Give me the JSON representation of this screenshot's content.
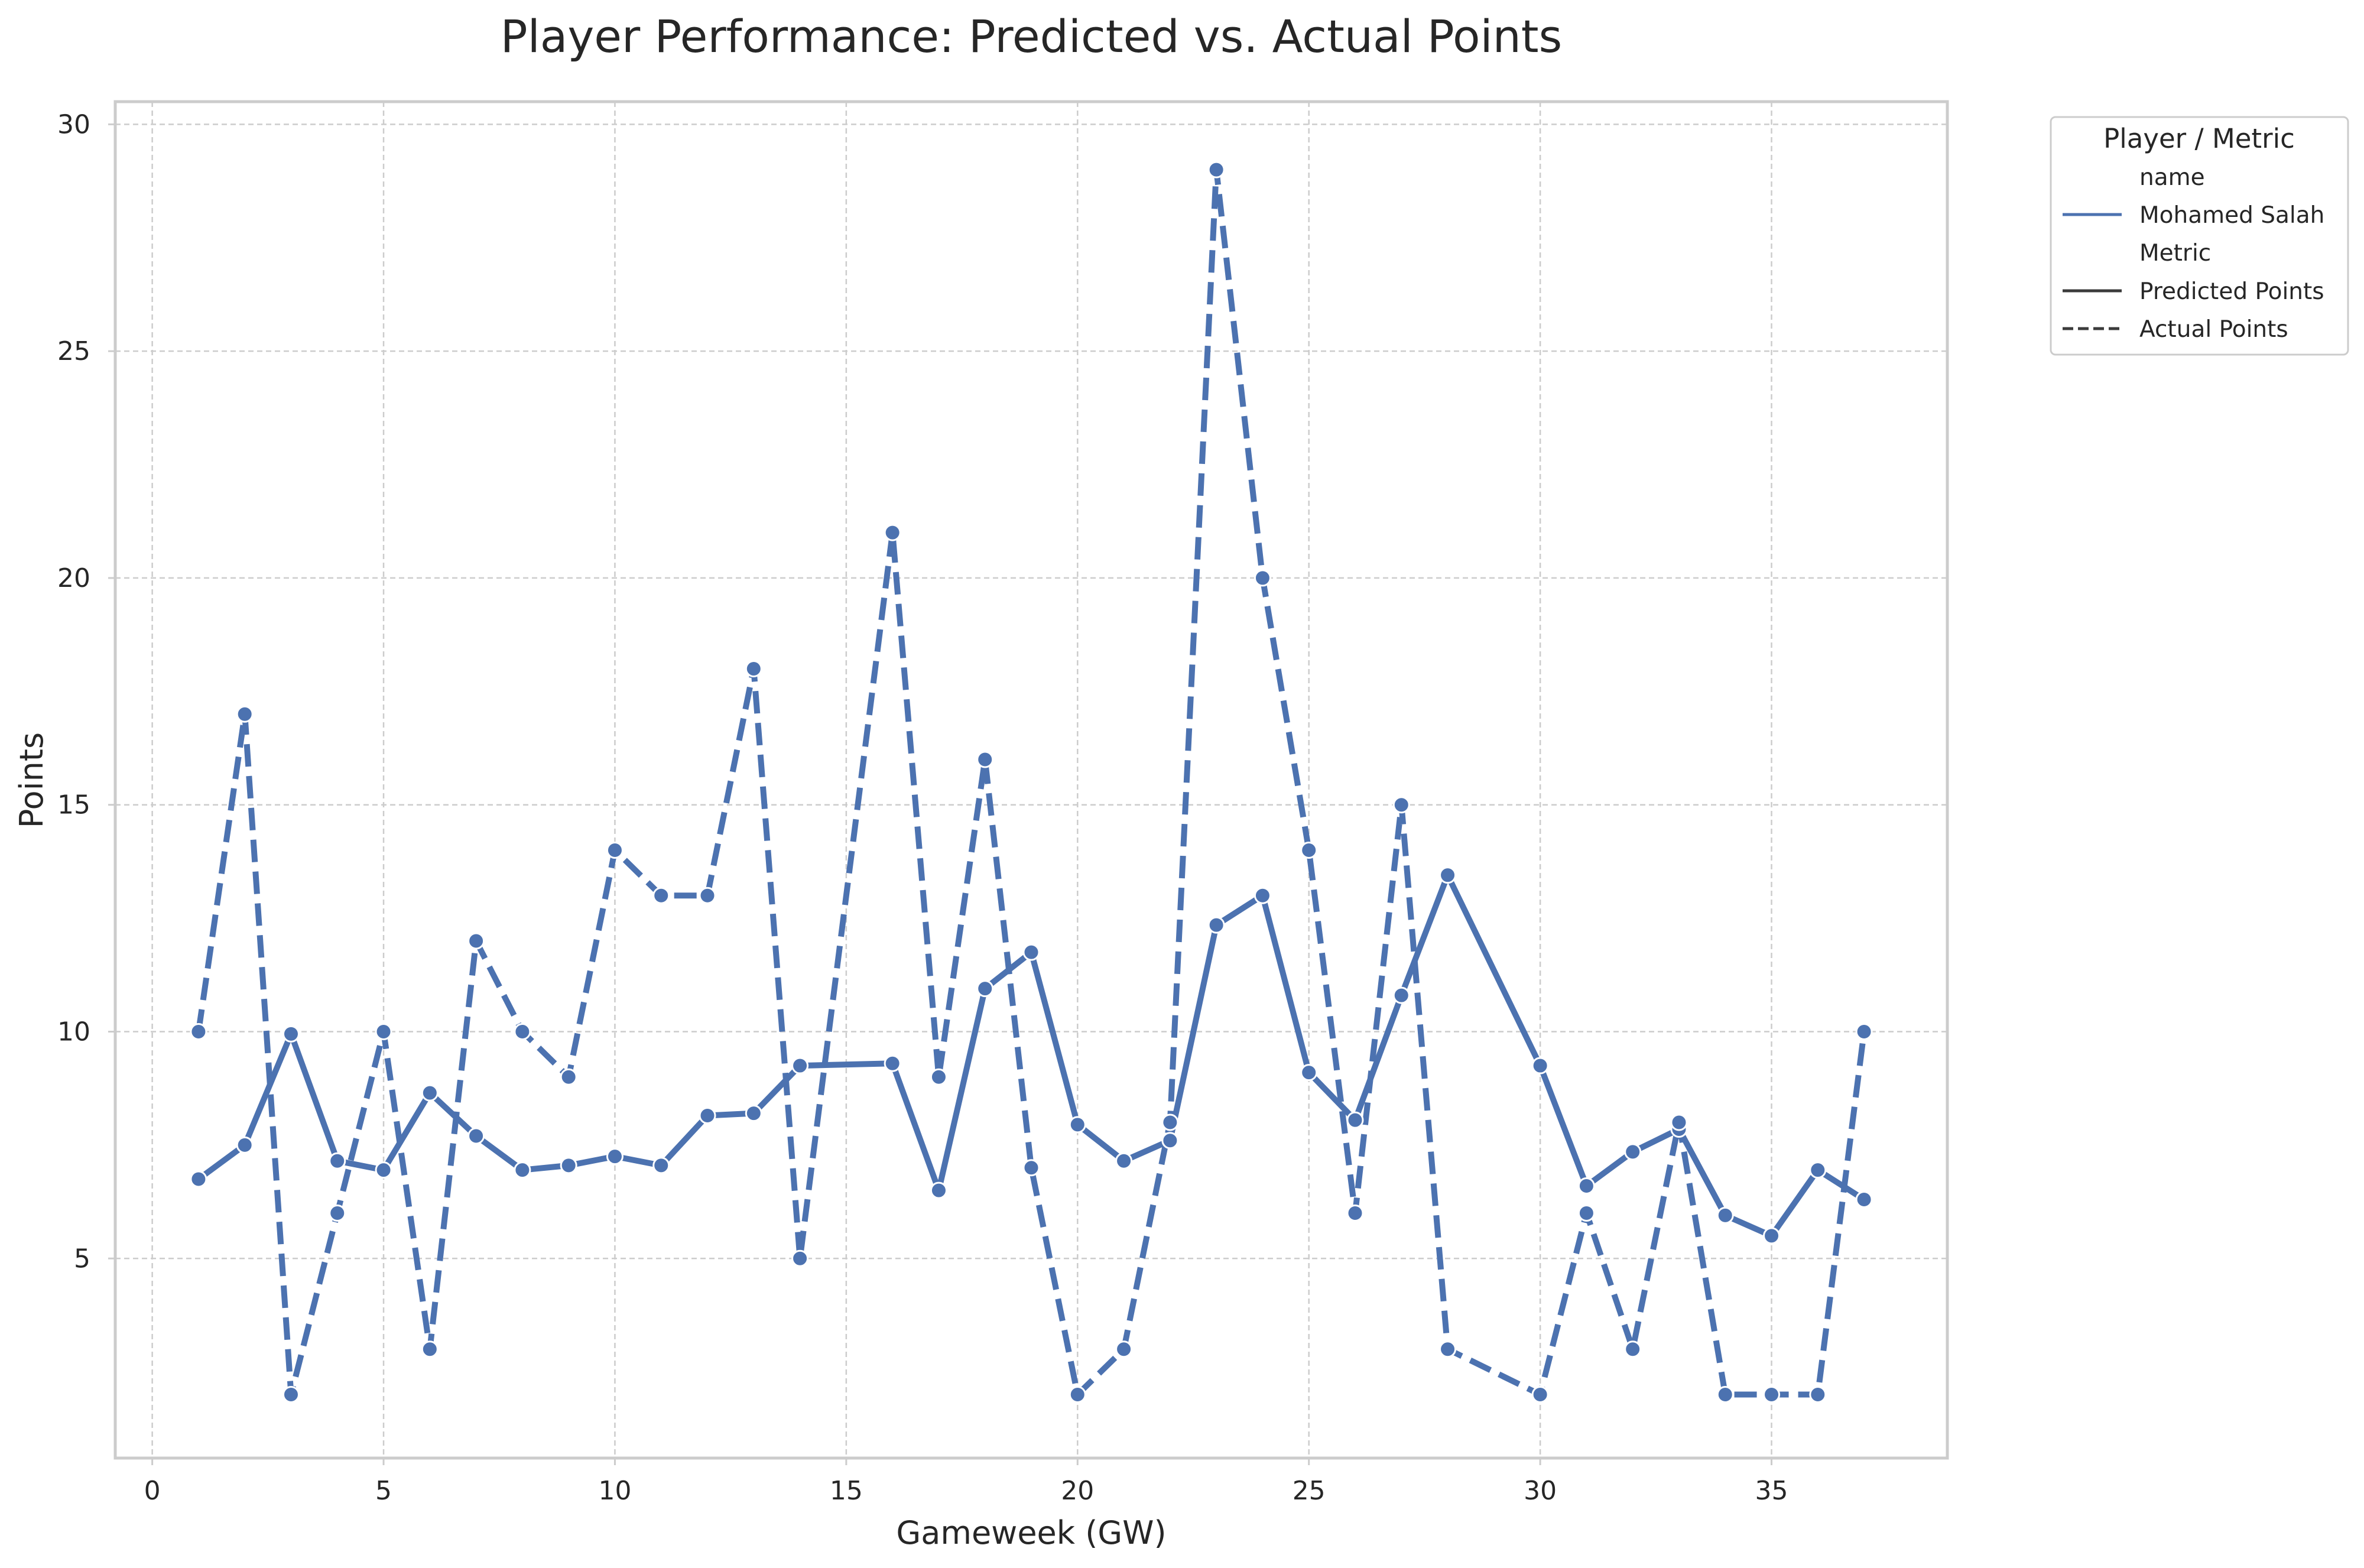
{
  "chart_data": {
    "type": "line",
    "title": "Player Performance: Predicted vs. Actual Points",
    "xlabel": "Gameweek (GW)",
    "ylabel": "Points",
    "xlim": [
      -0.8,
      38.8
    ],
    "ylim": [
      0.6,
      30.5
    ],
    "xticks": [
      0,
      5,
      10,
      15,
      20,
      25,
      30,
      35
    ],
    "yticks": [
      5,
      10,
      15,
      20,
      25,
      30
    ],
    "grid": true,
    "legend": {
      "placement": "outside-top-right",
      "title": "Player / Metric",
      "hue_header": "name",
      "hue_item": "Mohamed Salah",
      "style_header": "Metric",
      "style_items": [
        "Predicted Points",
        "Actual Points"
      ]
    },
    "colors": {
      "series": "#4c72b0",
      "legend_dark": "#3b3b3b"
    },
    "series": [
      {
        "name": "Predicted Points",
        "style": "solid",
        "x": [
          1,
          2,
          3,
          4,
          5,
          6,
          7,
          8,
          9,
          10,
          11,
          12,
          13,
          14,
          16,
          17,
          18,
          19,
          20,
          21,
          22,
          23,
          24,
          25,
          26,
          27,
          28,
          30,
          31,
          32,
          33,
          34,
          35,
          36,
          37
        ],
        "values": [
          6.75,
          7.5,
          9.95,
          7.15,
          6.95,
          8.65,
          7.7,
          6.95,
          7.05,
          7.25,
          7.05,
          8.15,
          8.2,
          9.25,
          9.3,
          6.5,
          10.95,
          11.75,
          7.95,
          7.15,
          7.6,
          12.35,
          13.0,
          9.1,
          8.05,
          10.8,
          13.45,
          9.25,
          6.6,
          7.35,
          7.85,
          5.95,
          5.5,
          6.95,
          6.3
        ]
      },
      {
        "name": "Actual Points",
        "style": "dashed",
        "x": [
          1,
          2,
          3,
          4,
          5,
          6,
          7,
          8,
          9,
          10,
          11,
          12,
          13,
          14,
          16,
          17,
          18,
          19,
          20,
          21,
          22,
          23,
          24,
          25,
          26,
          27,
          28,
          30,
          31,
          32,
          33,
          34,
          35,
          36,
          37
        ],
        "values": [
          10,
          17,
          2,
          6,
          10,
          3,
          12,
          10,
          9,
          14,
          13,
          13,
          18,
          5,
          21,
          9,
          16,
          7,
          2,
          3,
          8,
          29,
          20,
          14,
          6,
          15,
          3,
          2,
          6,
          3,
          8,
          2,
          2,
          2,
          10
        ]
      }
    ]
  }
}
